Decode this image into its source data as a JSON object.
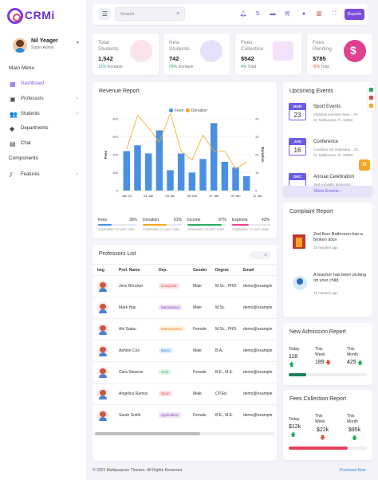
{
  "brand": {
    "name": "CRMi"
  },
  "user": {
    "name": "Nil Yeager",
    "role": "Super Admin"
  },
  "sidebar": {
    "section_main": "Main Menu",
    "section_components": "Components",
    "items": [
      {
        "label": "Dashboard",
        "icon": "dashboard-icon",
        "active": true
      },
      {
        "label": "Professors",
        "icon": "professor-icon",
        "chevron": true
      },
      {
        "label": "Students",
        "icon": "students-icon",
        "chevron": true
      },
      {
        "label": "Departments",
        "icon": "departments-icon"
      },
      {
        "label": "Chat",
        "icon": "chat-icon"
      },
      {
        "label": "Features",
        "icon": "features-icon",
        "chevron": true
      }
    ]
  },
  "topbar": {
    "search_placeholder": "Search",
    "reports_label": "Reports",
    "icons": [
      "bell-icon",
      "sort-icon",
      "file-icon",
      "cart-icon",
      "chat-icon",
      "flag-icon",
      "fullscreen-icon"
    ]
  },
  "stats": [
    {
      "title": "Total Students",
      "value": "1,542",
      "change": "12%",
      "change_label": "Increase",
      "change_color": "#27ae60"
    },
    {
      "title": "New Students",
      "value": "742",
      "change": "09%",
      "change_label": "Increase",
      "change_color": "#27ae60"
    },
    {
      "title": "Fees Collection",
      "value": "$542",
      "change": "4%",
      "change_label": "Total",
      "change_color": "#27ae60"
    },
    {
      "title": "Fees Pending",
      "value": "$785",
      "change": "-5%",
      "change_label": "Total",
      "change_color": "#e74c3c"
    }
  ],
  "revenue": {
    "title": "Revenue Report",
    "metrics": [
      {
        "name": "Fees",
        "pct": "35%",
        "sub": "COMPARED TO LAST YEAR",
        "color": "#4a90e2",
        "fill": 0.35
      },
      {
        "name": "Donation",
        "pct": "61%",
        "sub": "COMPARED TO LAST YEAR",
        "color": "#f5a623",
        "fill": 0.61
      },
      {
        "name": "Income",
        "pct": "87%",
        "sub": "COMPARED TO LAST YEAR",
        "color": "#27ae60",
        "fill": 0.87
      },
      {
        "name": "Expense",
        "pct": "42%",
        "sub": "COMPARED TO LAST YEAR",
        "color": "#e84393",
        "fill": 0.42
      }
    ]
  },
  "chart_data": {
    "type": "bar",
    "title": "Revenue Report",
    "x_tick_labels": [
      "Jan '11",
      "01 Jan",
      "03 Jan",
      "05 Jan",
      "07 Jan",
      "09 Jan",
      "11 Jan"
    ],
    "series": [
      {
        "name": "Fees",
        "type": "bar",
        "axis": "left",
        "color": "#4a90e2",
        "values": [
          440,
          505,
          414,
          671,
          227,
          413,
          201,
          352,
          752,
          320,
          257,
          160
        ]
      },
      {
        "name": "Donation",
        "type": "line",
        "axis": "right",
        "color": "#f5a623",
        "values": [
          23,
          42,
          35,
          27,
          43,
          22,
          17,
          31,
          22,
          22,
          12,
          16
        ]
      }
    ],
    "ylabel_left": "Fees",
    "ylabel_right": "Donation",
    "y_left_ticks": [
      0,
      200,
      400,
      600,
      800
    ],
    "y_right_ticks": [
      0,
      10,
      20,
      30,
      40
    ],
    "ylim_left": [
      0,
      800
    ],
    "ylim_right": [
      0,
      40
    ],
    "legend_position": "top-center",
    "grid": true
  },
  "events": {
    "title": "Upcoming Events",
    "items": [
      {
        "month": "MAR",
        "day": "23",
        "title": "Sport Events",
        "desc": "Vivamus pulvinar maur... 22 St. Melbourne, FL 32904"
      },
      {
        "month": "JAN",
        "day": "16",
        "title": "Conference",
        "desc": "Curabitur vel molesaus... 22 St. Melbourne, FL 32904"
      },
      {
        "month": "DEC",
        "day": "",
        "title": "Annual Celebration",
        "desc": "Sed convallis dignissim..."
      }
    ],
    "more": "More Events ›"
  },
  "complaints": {
    "title": "Complaint Report",
    "items": [
      {
        "text": "2nd floor Bathroom has a broken door",
        "time": "15 minutes ago"
      },
      {
        "text": "A teacher has been picking on your child.",
        "time": "15 minutes ago"
      }
    ]
  },
  "professors": {
    "title": "Professors List",
    "headers": [
      "Img",
      "Prof. Name",
      "Dep.",
      "Gender",
      "Degree",
      "Email"
    ],
    "rows": [
      {
        "name": "Jens Brincker",
        "dep": "Computer",
        "dep_color": "#e74c3c",
        "dep_bg": "#fde3e6",
        "gender": "Male",
        "degree": "M.Sc., PHD.",
        "email": "demo@example"
      },
      {
        "name": "Mark Hay",
        "dep": "Mechanical",
        "dep_color": "#8e44ad",
        "dep_bg": "#efe3f8",
        "gender": "Male",
        "degree": "M.Sc.",
        "email": "demo@example"
      },
      {
        "name": "Airi Satou",
        "dep": "Mathematics",
        "dep_color": "#e67e22",
        "dep_bg": "#fff3dd",
        "gender": "Female",
        "degree": "M.Sc., PHD.",
        "email": "demo@example"
      },
      {
        "name": "Ashton Cox",
        "dep": "Music",
        "dep_color": "#2e86de",
        "dep_bg": "#e1efff",
        "gender": "Male",
        "degree": "B.A.",
        "email": "demo@example"
      },
      {
        "name": "Cara Stevens",
        "dep": "Civil",
        "dep_color": "#27ae60",
        "dep_bg": "#e0f6e9",
        "gender": "Female",
        "degree": "B.E., M.E.",
        "email": "demo@example"
      },
      {
        "name": "Angelica Ramos",
        "dep": "Sport",
        "dep_color": "#e74c3c",
        "dep_bg": "#fde3e6",
        "gender": "Male",
        "degree": "CP.Ed.",
        "email": "demo@example"
      },
      {
        "name": "Sarah Smith",
        "dep": "Agriculture",
        "dep_color": "#8e44ad",
        "dep_bg": "#efe3f8",
        "gender": "Female",
        "degree": "B.E., M.E.",
        "email": "demo@example"
      }
    ]
  },
  "admission": {
    "title": "New Admission Report",
    "cols": [
      {
        "label": "Today",
        "value": "118",
        "trend": "up"
      },
      {
        "label": "This Week",
        "value": "189",
        "trend": "down"
      },
      {
        "label": "This Month",
        "value": "425",
        "trend": "up"
      }
    ],
    "progress": 0.22,
    "color": "#1b7f5a"
  },
  "fees_collection": {
    "title": "Fees Collection Report",
    "cols": [
      {
        "label": "Today",
        "value": "$12k",
        "trend": "up"
      },
      {
        "label": "This Week",
        "value": "$22k",
        "trend": "down"
      },
      {
        "label": "This Month",
        "value": "$95k",
        "trend": "up"
      }
    ],
    "progress": 0.75,
    "color": "#e5435a"
  },
  "footer": {
    "copyright": "© 2023 Multipurpose Themes. All Rights Reserved.",
    "link": "Purchase Now"
  }
}
